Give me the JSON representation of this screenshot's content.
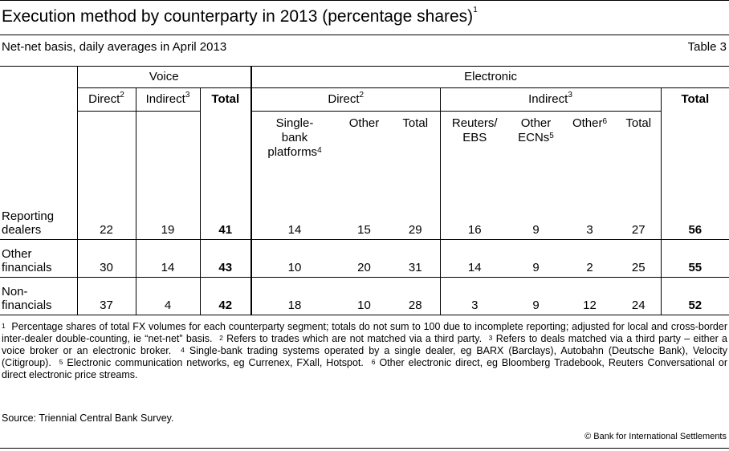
{
  "header": {
    "title": "Execution method by counterparty in 2013 (percentage shares)",
    "title_note": "1",
    "subtitle": "Net-net basis, daily averages in April 2013",
    "table_number": "Table 3"
  },
  "table": {
    "group_voice": "Voice",
    "group_electronic": "Electronic",
    "voice_direct": "Direct",
    "voice_direct_note": "2",
    "voice_indirect": "Indirect",
    "voice_indirect_note": "3",
    "voice_total": "Total",
    "elec_direct": "Direct",
    "elec_direct_note": "2",
    "elec_indirect": "Indirect",
    "elec_indirect_note": "3",
    "elec_total": "Total",
    "single_bank_l1": "Single-",
    "single_bank_l2": "bank",
    "single_bank_l3": "platforms",
    "single_bank_note": "4",
    "direct_other": "Other",
    "direct_total": "Total",
    "reuters_l1": "Reuters/",
    "reuters_l2": "EBS",
    "other_ecns_l1": "Other",
    "other_ecns_l2": "ECNs",
    "other_ecns_note": "5",
    "indirect_other": "Other",
    "indirect_other_note": "6",
    "indirect_total": "Total",
    "rows": [
      {
        "label_l1": "Reporting",
        "label_l2": "dealers",
        "values": [
          "22",
          "19",
          "41",
          "14",
          "15",
          "29",
          "16",
          "9",
          "3",
          "27",
          "56"
        ]
      },
      {
        "label_l1": "Other",
        "label_l2": "financials",
        "values": [
          "30",
          "14",
          "43",
          "10",
          "20",
          "31",
          "14",
          "9",
          "2",
          "25",
          "55"
        ]
      },
      {
        "label_l1": "Non-",
        "label_l2": "financials",
        "values": [
          "37",
          "4",
          "42",
          "18",
          "10",
          "28",
          "3",
          "9",
          "12",
          "24",
          "52"
        ]
      }
    ]
  },
  "footnotes": {
    "n1": "1",
    "t1": "Percentage shares of total FX volumes for each counterparty segment; totals do not sum to 100 due to incomplete reporting; adjusted for local and cross-border inter-dealer double-counting, ie “net-net” basis.",
    "n2": "2",
    "t2": "Refers to trades which are not matched via a third party.",
    "n3": "3",
    "t3": "Refers to deals matched via a third party – either a voice broker or an electronic broker.",
    "n4": "4",
    "t4": "Single-bank trading systems operated by a single dealer, eg BARX (Barclays), Autobahn (Deutsche Bank), Velocity (Citigroup).",
    "n5": "5",
    "t5": "Electronic communication networks, eg Currenex, FXall, Hotspot.",
    "n6": "6",
    "t6": "Other electronic direct, eg Bloomberg Tradebook, Reuters Conversational or direct electronic price streams."
  },
  "source": "Source: Triennial Central Bank Survey.",
  "copyright": "© Bank for International Settlements"
}
